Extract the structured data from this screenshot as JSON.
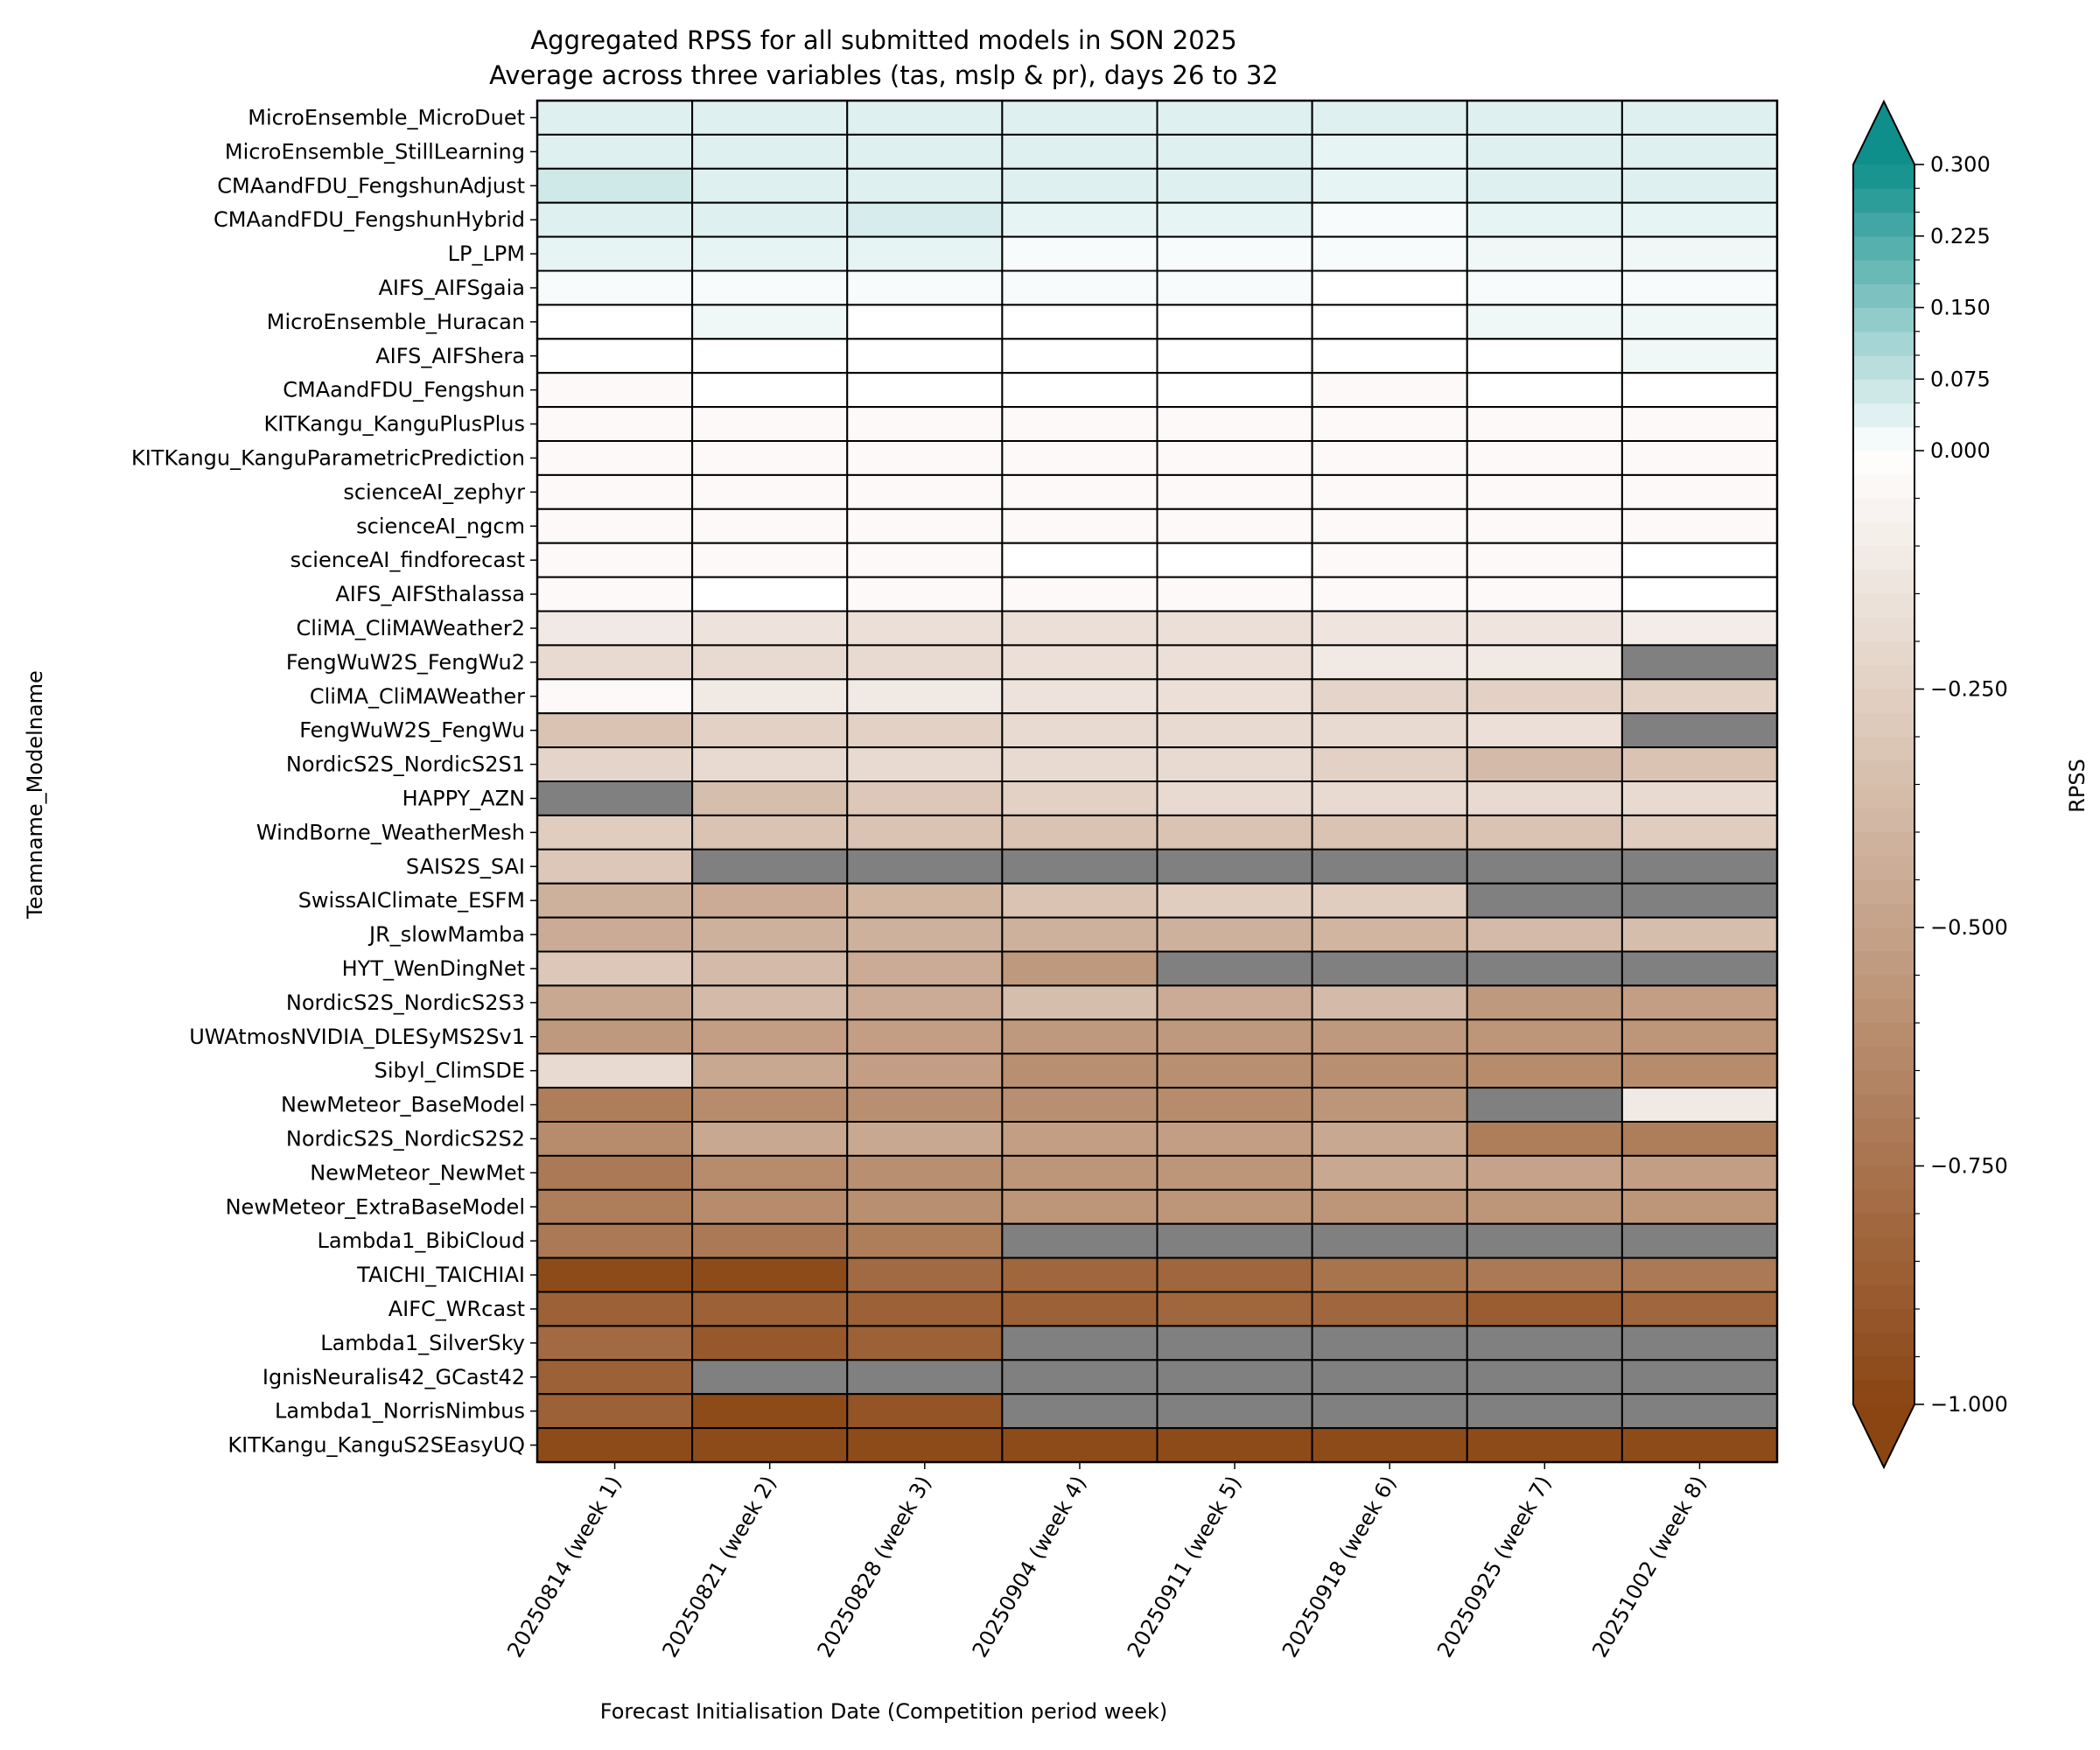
{
  "chart_data": {
    "type": "heatmap",
    "title": "Aggregated RPSS for all submitted models in SON 2025",
    "subtitle": "Average across three variables (tas, mslp & pr), days 26 to 32",
    "xlabel": "Forecast Initialisation Date (Competition period week)",
    "ylabel": "Teamname_Modelname",
    "colorbar_label": "RPSS",
    "colorbar_range": [
      -1.0,
      0.3
    ],
    "colorbar_ticks": [
      {
        "value": 0.3,
        "label": "0.300"
      },
      {
        "value": 0.225,
        "label": "0.225"
      },
      {
        "value": 0.15,
        "label": "0.150"
      },
      {
        "value": 0.075,
        "label": "0.075"
      },
      {
        "value": 0.0,
        "label": "0.000"
      },
      {
        "value": -0.25,
        "label": "−0.250"
      },
      {
        "value": -0.5,
        "label": "−0.500"
      },
      {
        "value": -0.75,
        "label": "−0.750"
      },
      {
        "value": -1.0,
        "label": "−1.000"
      }
    ],
    "colors": {
      "positive": "#0f8f8c",
      "zero": "#ffffff",
      "negative": "#8b4513",
      "missing": "#808080"
    },
    "columns": [
      "20250814 (week 1)",
      "20250821 (week 2)",
      "20250828 (week 3)",
      "20250904 (week 4)",
      "20250911 (week 5)",
      "20250918 (week 6)",
      "20250925 (week 7)",
      "20251002 (week 8)"
    ],
    "rows": [
      "MicroEnsemble_MicroDuet",
      "MicroEnsemble_StillLearning",
      "CMAandFDU_FengshunAdjust",
      "CMAandFDU_FengshunHybrid",
      "LP_LPM",
      "AIFS_AIFSgaia",
      "MicroEnsemble_Huracan",
      "AIFS_AIFShera",
      "CMAandFDU_Fengshun",
      "KITKangu_KanguPlusPlus",
      "KITKangu_KanguParametricPrediction",
      "scienceAI_zephyr",
      "scienceAI_ngcm",
      "scienceAI_findforecast",
      "AIFS_AIFSthalassa",
      "CliMA_CliMAWeather2",
      "FengWuW2S_FengWu2",
      "CliMA_CliMAWeather",
      "FengWuW2S_FengWu",
      "NordicS2S_NordicS2S1",
      "HAPPY_AZN",
      "WindBorne_WeatherMesh",
      "SAIS2S_SAI",
      "SwissAIClimate_ESFM",
      "JR_slowMamba",
      "HYT_WenDingNet",
      "NordicS2S_NordicS2S3",
      "UWAtmosNVIDIA_DLESyMS2Sv1",
      "Sibyl_ClimSDE",
      "NewMeteor_BaseModel",
      "NordicS2S_NordicS2S2",
      "NewMeteor_NewMet",
      "NewMeteor_ExtraBaseModel",
      "Lambda1_BibiCloud",
      "TAICHI_TAICHIAI",
      "AIFC_WRcast",
      "Lambda1_SilverSky",
      "IgnisNeuralis42_GCast42",
      "Lambda1_NorrisNimbus",
      "KITKangu_KanguS2SEasyUQ"
    ],
    "values": [
      [
        0.04,
        0.04,
        0.04,
        0.04,
        0.04,
        0.04,
        0.04,
        0.04
      ],
      [
        0.04,
        0.04,
        0.04,
        0.04,
        0.04,
        0.03,
        0.04,
        0.04
      ],
      [
        0.06,
        0.04,
        0.04,
        0.04,
        0.04,
        0.03,
        0.04,
        0.04
      ],
      [
        0.04,
        0.04,
        0.05,
        0.03,
        0.03,
        0.01,
        0.03,
        0.03
      ],
      [
        0.03,
        0.03,
        0.03,
        0.01,
        0.01,
        0.01,
        0.02,
        0.02
      ],
      [
        0.01,
        0.01,
        0.01,
        0.01,
        0.01,
        0.0,
        0.01,
        0.01
      ],
      [
        0.0,
        0.02,
        0.0,
        0.0,
        0.0,
        0.0,
        0.02,
        0.02
      ],
      [
        0.0,
        0.0,
        0.0,
        0.0,
        0.0,
        0.0,
        0.0,
        0.02
      ],
      [
        -0.03,
        0.0,
        0.0,
        0.0,
        0.0,
        -0.03,
        0.0,
        0.0
      ],
      [
        -0.03,
        -0.03,
        -0.03,
        -0.03,
        -0.03,
        -0.03,
        -0.03,
        -0.03
      ],
      [
        -0.03,
        -0.03,
        -0.03,
        -0.03,
        -0.03,
        -0.03,
        -0.03,
        -0.03
      ],
      [
        -0.03,
        -0.03,
        -0.03,
        -0.03,
        -0.03,
        -0.03,
        -0.03,
        -0.03
      ],
      [
        -0.03,
        -0.03,
        -0.03,
        -0.03,
        -0.03,
        -0.03,
        -0.03,
        -0.03
      ],
      [
        -0.03,
        -0.03,
        -0.03,
        0.0,
        0.0,
        -0.03,
        -0.03,
        0.0
      ],
      [
        -0.03,
        0.0,
        -0.03,
        -0.03,
        -0.03,
        -0.03,
        -0.03,
        0.0
      ],
      [
        -0.12,
        -0.15,
        -0.17,
        -0.17,
        -0.17,
        -0.14,
        -0.14,
        -0.1
      ],
      [
        -0.2,
        -0.2,
        -0.2,
        -0.17,
        -0.17,
        -0.12,
        -0.12,
        null
      ],
      [
        -0.03,
        -0.12,
        -0.12,
        -0.15,
        -0.17,
        -0.23,
        -0.25,
        -0.25
      ],
      [
        -0.32,
        -0.25,
        -0.25,
        -0.2,
        -0.2,
        -0.2,
        -0.17,
        null
      ],
      [
        -0.23,
        -0.2,
        -0.2,
        -0.2,
        -0.2,
        -0.25,
        -0.37,
        -0.32
      ],
      [
        null,
        -0.35,
        -0.3,
        -0.25,
        -0.2,
        -0.2,
        -0.2,
        -0.2
      ],
      [
        -0.27,
        -0.32,
        -0.32,
        -0.32,
        -0.32,
        -0.32,
        -0.32,
        -0.27
      ],
      [
        -0.3,
        null,
        null,
        null,
        null,
        null,
        null,
        null
      ],
      [
        -0.42,
        -0.45,
        -0.4,
        -0.32,
        -0.27,
        -0.27,
        null,
        null
      ],
      [
        -0.45,
        -0.42,
        -0.42,
        -0.42,
        -0.42,
        -0.4,
        -0.37,
        -0.35
      ],
      [
        -0.3,
        -0.37,
        -0.45,
        -0.55,
        null,
        null,
        null,
        null
      ],
      [
        -0.47,
        -0.37,
        -0.45,
        -0.35,
        -0.45,
        -0.37,
        -0.55,
        -0.52
      ],
      [
        -0.55,
        -0.52,
        -0.52,
        -0.55,
        -0.55,
        -0.55,
        -0.57,
        -0.57
      ],
      [
        -0.2,
        -0.47,
        -0.52,
        -0.6,
        -0.6,
        -0.6,
        -0.62,
        -0.62
      ],
      [
        -0.7,
        -0.62,
        -0.6,
        -0.6,
        -0.62,
        -0.57,
        null,
        -0.12
      ],
      [
        -0.62,
        -0.47,
        -0.47,
        -0.52,
        -0.52,
        -0.47,
        -0.7,
        -0.7
      ],
      [
        -0.72,
        -0.62,
        -0.6,
        -0.57,
        -0.57,
        -0.47,
        -0.5,
        -0.52
      ],
      [
        -0.7,
        -0.62,
        -0.6,
        -0.57,
        -0.57,
        -0.57,
        -0.57,
        -0.57
      ],
      [
        -0.72,
        -0.72,
        -0.7,
        null,
        null,
        null,
        null,
        null
      ],
      [
        -0.97,
        -0.97,
        -0.8,
        -0.82,
        -0.82,
        -0.75,
        -0.72,
        -0.72
      ],
      [
        -0.85,
        -0.85,
        -0.85,
        -0.85,
        -0.82,
        -0.82,
        -0.87,
        -0.82
      ],
      [
        -0.8,
        -0.9,
        -0.85,
        null,
        null,
        null,
        null,
        null
      ],
      [
        -0.85,
        null,
        null,
        null,
        null,
        null,
        null,
        null
      ],
      [
        -0.85,
        -0.97,
        -0.92,
        null,
        null,
        null,
        null,
        null
      ],
      [
        -0.97,
        -0.97,
        -0.97,
        -0.97,
        -0.97,
        -0.97,
        -0.97,
        -0.97
      ]
    ]
  }
}
